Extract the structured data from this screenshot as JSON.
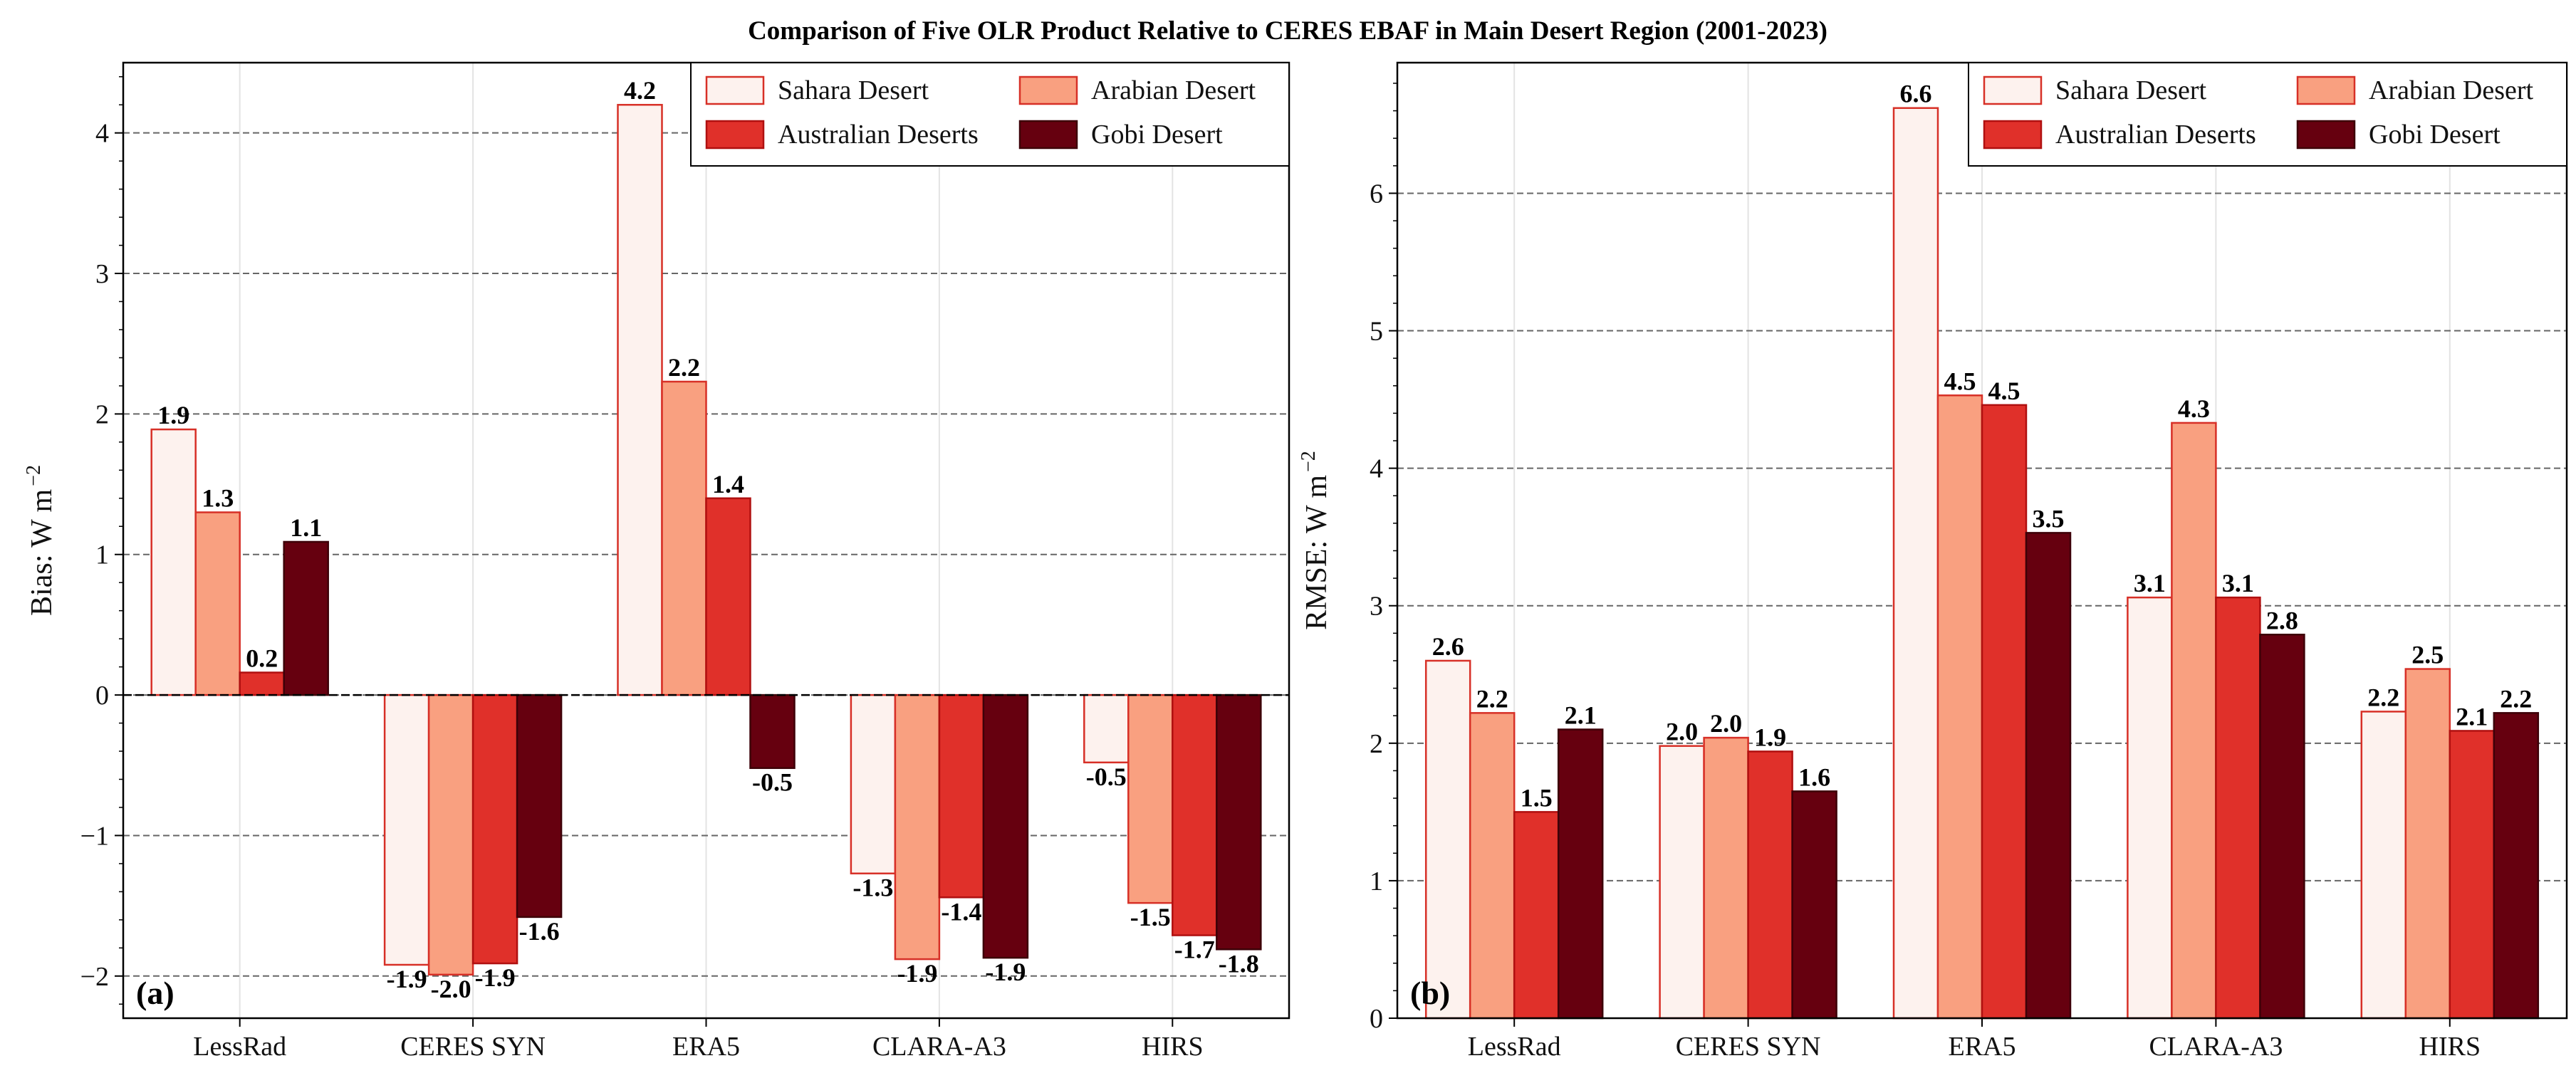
{
  "figure": {
    "title": "Comparison of Five OLR Product Relative to CERES EBAF in Main Desert Region (2001-2023)"
  },
  "chart_data": [
    {
      "type": "bar",
      "panel_label": "(a)",
      "ylabel": "Bias: W m",
      "ylabel_sup": "−2",
      "ylim": [
        -2.3,
        4.5
      ],
      "yticks": [
        -2,
        -1,
        0,
        1,
        2,
        3,
        4
      ],
      "ytick_labels": [
        "−2",
        "−1",
        "0",
        "1",
        "2",
        "3",
        "4"
      ],
      "categories": [
        "LessRad",
        "CERES SYN",
        "ERA5",
        "CLARA-A3",
        "HIRS"
      ],
      "series": [
        {
          "name": "Sahara Desert",
          "color": "#fdf2ee",
          "edge": "#d73027",
          "values": [
            1.89,
            -1.92,
            4.2,
            -1.27,
            -0.48
          ],
          "labels": [
            "1.9",
            "-1.9",
            "4.2",
            "-1.3",
            "-0.5"
          ]
        },
        {
          "name": "Arabian Desert",
          "color": "#f9a080",
          "edge": "#d73027",
          "values": [
            1.3,
            -1.99,
            2.23,
            -1.88,
            -1.48
          ],
          "labels": [
            "1.3",
            "-2.0",
            "2.2",
            "-1.9",
            "-1.5"
          ]
        },
        {
          "name": "Australian Deserts",
          "color": "#e0302a",
          "edge": "#b01010",
          "values": [
            0.16,
            -1.91,
            1.4,
            -1.44,
            -1.71
          ],
          "labels": [
            "0.2",
            "-1.9",
            "1.4",
            "-1.4",
            "-1.7"
          ]
        },
        {
          "name": "Gobi Desert",
          "color": "#66000f",
          "edge": "#3d0008",
          "values": [
            1.09,
            -1.58,
            -0.52,
            -1.87,
            -1.81
          ],
          "labels": [
            "1.1",
            "-1.6",
            "-0.5",
            "-1.9",
            "-1.8"
          ]
        }
      ],
      "grid": "horizontal dashed at major ticks",
      "legend_position": "top-right"
    },
    {
      "type": "bar",
      "panel_label": "(b)",
      "ylabel": "RMSE: W m",
      "ylabel_sup": "−2",
      "ylim": [
        0,
        6.95
      ],
      "yticks": [
        0,
        1,
        2,
        3,
        4,
        5,
        6
      ],
      "ytick_labels": [
        "0",
        "1",
        "2",
        "3",
        "4",
        "5",
        "6"
      ],
      "categories": [
        "LessRad",
        "CERES SYN",
        "ERA5",
        "CLARA-A3",
        "HIRS"
      ],
      "series": [
        {
          "name": "Sahara Desert",
          "color": "#fdf2ee",
          "edge": "#d73027",
          "values": [
            2.6,
            1.98,
            6.62,
            3.06,
            2.23
          ],
          "labels": [
            "2.6",
            "2.0",
            "6.6",
            "3.1",
            "2.2"
          ]
        },
        {
          "name": "Arabian Desert",
          "color": "#f9a080",
          "edge": "#d73027",
          "values": [
            2.22,
            2.04,
            4.53,
            4.33,
            2.54
          ],
          "labels": [
            "2.2",
            "2.0",
            "4.5",
            "4.3",
            "2.5"
          ]
        },
        {
          "name": "Australian Deserts",
          "color": "#e0302a",
          "edge": "#b01010",
          "values": [
            1.5,
            1.94,
            4.46,
            3.06,
            2.09
          ],
          "labels": [
            "1.5",
            "1.9",
            "4.5",
            "3.1",
            "2.1"
          ]
        },
        {
          "name": "Gobi Desert",
          "color": "#66000f",
          "edge": "#3d0008",
          "values": [
            2.1,
            1.65,
            3.53,
            2.79,
            2.22
          ],
          "labels": [
            "2.1",
            "1.6",
            "3.5",
            "2.8",
            "2.2"
          ]
        }
      ],
      "grid": "horizontal dashed at major ticks",
      "legend_position": "top-right"
    }
  ]
}
